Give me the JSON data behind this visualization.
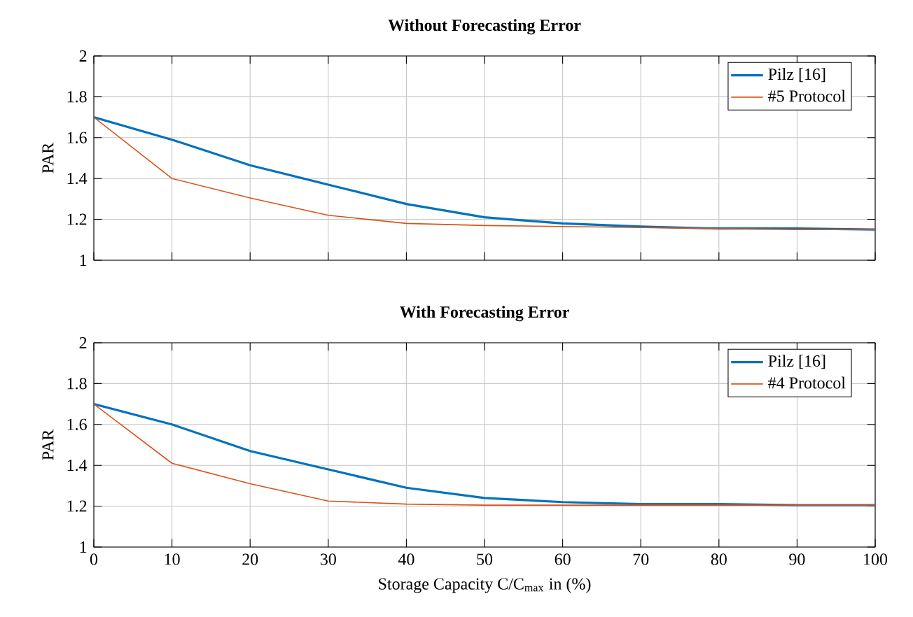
{
  "chart_data": [
    {
      "type": "line",
      "title": "Without Forecasting Error",
      "ylabel": "PAR",
      "x": [
        0,
        10,
        20,
        30,
        40,
        50,
        60,
        70,
        80,
        90,
        100
      ],
      "xlim": [
        0,
        100
      ],
      "xticks": [
        0,
        10,
        20,
        30,
        40,
        50,
        60,
        70,
        80,
        90,
        100
      ],
      "ylim": [
        1,
        2
      ],
      "yticks": [
        1,
        1.2,
        1.4,
        1.6,
        1.8,
        2
      ],
      "grid": true,
      "legend": "top right",
      "tick_labels": "y",
      "series": [
        {
          "name": "Pilz [16]",
          "color": "#0072bd",
          "values": [
            1.7,
            1.59,
            1.465,
            1.37,
            1.275,
            1.21,
            1.18,
            1.165,
            1.155,
            1.155,
            1.15
          ]
        },
        {
          "name": "#5 Protocol",
          "color": "#d95319",
          "values": [
            1.7,
            1.4,
            1.305,
            1.22,
            1.18,
            1.17,
            1.165,
            1.16,
            1.155,
            1.15,
            1.15
          ]
        }
      ]
    },
    {
      "type": "line",
      "title": "With Forecasting Error",
      "ylabel": "PAR",
      "xlabel": "Storage Capacity C/C$_{max}$ in (%)",
      "x": [
        0,
        10,
        20,
        30,
        40,
        50,
        60,
        70,
        80,
        90,
        100
      ],
      "xlim": [
        0,
        100
      ],
      "xticks": [
        0,
        10,
        20,
        30,
        40,
        50,
        60,
        70,
        80,
        90,
        100
      ],
      "ylim": [
        1,
        2
      ],
      "yticks": [
        1,
        1.2,
        1.4,
        1.6,
        1.8,
        2
      ],
      "grid": true,
      "legend": "top right",
      "series": [
        {
          "name": "Pilz [16]",
          "color": "#0072bd",
          "values": [
            1.7,
            1.6,
            1.47,
            1.38,
            1.29,
            1.24,
            1.22,
            1.21,
            1.21,
            1.205,
            1.205
          ]
        },
        {
          "name": "#4 Protocol",
          "color": "#d95319",
          "values": [
            1.7,
            1.41,
            1.31,
            1.225,
            1.21,
            1.205,
            1.205,
            1.205,
            1.205,
            1.205,
            1.205
          ]
        }
      ]
    }
  ]
}
